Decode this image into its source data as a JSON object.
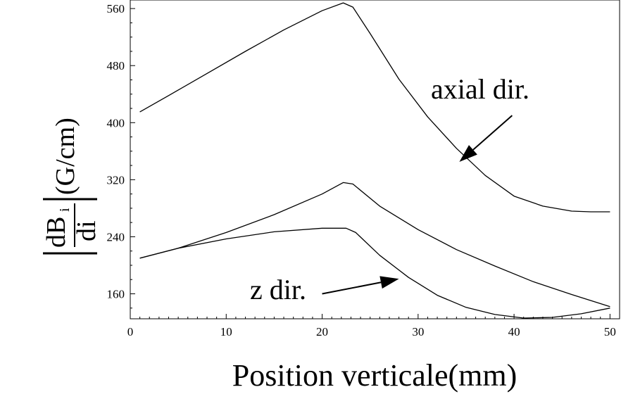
{
  "chart_data": {
    "type": "line",
    "xlabel": "Position verticale(mm)",
    "ylabel": {
      "numerator": "dB",
      "subscript": "i",
      "denominator": "di",
      "unit": "(G/cm)"
    },
    "xlim": [
      0,
      51
    ],
    "ylim": [
      125,
      572
    ],
    "xticks": [
      0,
      10,
      20,
      30,
      40,
      50
    ],
    "yticks": [
      160,
      240,
      320,
      400,
      480,
      560
    ],
    "grid": false,
    "series": [
      {
        "x": [
          1,
          4,
          8,
          12,
          16,
          20,
          22.2,
          23.2,
          25,
          28,
          31,
          34,
          37,
          40,
          43,
          46,
          48,
          50
        ],
        "y": [
          415,
          438,
          469,
          500,
          530,
          557,
          568,
          562,
          525,
          461,
          408,
          364,
          326,
          297,
          283,
          276,
          275,
          275
        ]
      },
      {
        "x": [
          1,
          5,
          10,
          15,
          20,
          22.2,
          23.2,
          26,
          30,
          34,
          38,
          42,
          46,
          50
        ],
        "y": [
          210,
          224,
          246,
          271,
          300,
          316,
          314,
          283,
          250,
          222,
          199,
          177,
          159,
          142
        ]
      },
      {
        "x": [
          1,
          5,
          10,
          15,
          20,
          22.5,
          23.5,
          26,
          29,
          32,
          35,
          38,
          41,
          44,
          47,
          50
        ],
        "y": [
          210,
          224,
          237,
          247,
          252,
          252,
          246,
          214,
          183,
          158,
          141,
          131,
          126,
          127,
          132,
          140
        ]
      }
    ],
    "annotations": [
      {
        "text": "axial dir.",
        "arrow_from": [
          39.8,
          410
        ],
        "arrow_to": [
          34.3,
          345
        ]
      },
      {
        "text": "z dir.",
        "arrow_from": [
          20,
          160
        ],
        "arrow_to": [
          28,
          181
        ]
      }
    ]
  }
}
